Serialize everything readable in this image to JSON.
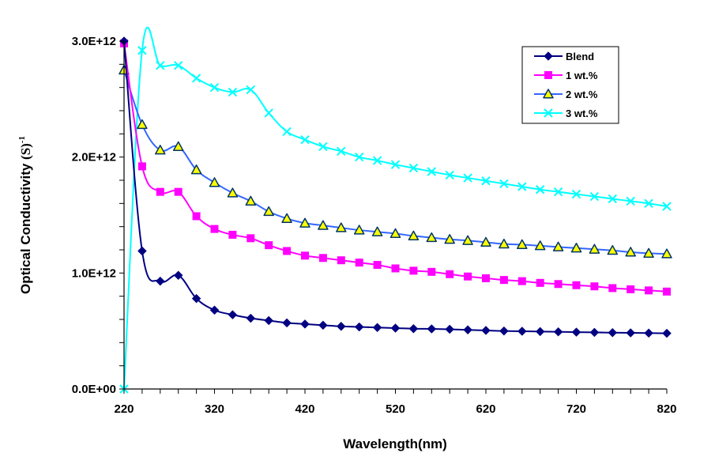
{
  "chart_data": {
    "type": "line",
    "title": "",
    "xlabel": "Wavelength(nm)",
    "ylabel": {
      "main": "Optical Conductivity ",
      "unit": "(S)",
      "exponent": "-1"
    },
    "xlim": [
      220,
      820
    ],
    "ylim": [
      0,
      3000000000000.0
    ],
    "x_ticks": [
      220,
      320,
      420,
      520,
      620,
      720,
      820
    ],
    "x_tick_labels": [
      "220",
      "320",
      "420",
      "520",
      "620",
      "720",
      "820"
    ],
    "x_minor_step": 20,
    "y_ticks": [
      0,
      1000000000000.0,
      2000000000000.0,
      3000000000000.0
    ],
    "y_tick_labels": [
      "0.0E+00",
      "1.0E+12",
      "2.0E+12",
      "3.0E+12"
    ],
    "y_minor_step": 200000000000.0,
    "grid": false,
    "legend_position": "top-right",
    "x": [
      220,
      240,
      260,
      280,
      300,
      320,
      340,
      360,
      380,
      400,
      420,
      440,
      460,
      480,
      500,
      520,
      540,
      560,
      580,
      600,
      620,
      640,
      660,
      680,
      700,
      720,
      740,
      760,
      780,
      800,
      820
    ],
    "series": [
      {
        "name": "Blend",
        "color": "#000080",
        "marker": "diamond",
        "values": [
          3000000000000.0,
          1190000000000.0,
          930000000000.0,
          980000000000.0,
          780000000000.0,
          680000000000.0,
          640000000000.0,
          610000000000.0,
          590000000000.0,
          570000000000.0,
          560000000000.0,
          550000000000.0,
          540000000000.0,
          535000000000.0,
          530000000000.0,
          525000000000.0,
          520000000000.0,
          518000000000.0,
          515000000000.0,
          510000000000.0,
          505000000000.0,
          500000000000.0,
          498000000000.0,
          495000000000.0,
          493000000000.0,
          490000000000.0,
          488000000000.0,
          486000000000.0,
          484000000000.0,
          482000000000.0,
          480000000000.0
        ]
      },
      {
        "name": "1 wt.%",
        "color": "#FF00FF",
        "marker": "square",
        "values": [
          2980000000000.0,
          1920000000000.0,
          1700000000000.0,
          1700000000000.0,
          1490000000000.0,
          1380000000000.0,
          1330000000000.0,
          1300000000000.0,
          1240000000000.0,
          1190000000000.0,
          1150000000000.0,
          1130000000000.0,
          1110000000000.0,
          1090000000000.0,
          1070000000000.0,
          1040000000000.0,
          1020000000000.0,
          1010000000000.0,
          990000000000.0,
          970000000000.0,
          955000000000.0,
          940000000000.0,
          930000000000.0,
          915000000000.0,
          905000000000.0,
          895000000000.0,
          885000000000.0,
          870000000000.0,
          860000000000.0,
          850000000000.0,
          840000000000.0
        ]
      },
      {
        "name": "2 wt.%",
        "color": "#3366FF",
        "marker": "triangle",
        "marker_fill": "#FFFF00",
        "marker_edge": "#003366",
        "values": [
          2750000000000.0,
          2280000000000.0,
          2060000000000.0,
          2090000000000.0,
          1890000000000.0,
          1780000000000.0,
          1690000000000.0,
          1620000000000.0,
          1530000000000.0,
          1470000000000.0,
          1430000000000.0,
          1410000000000.0,
          1390000000000.0,
          1370000000000.0,
          1355000000000.0,
          1340000000000.0,
          1320000000000.0,
          1305000000000.0,
          1290000000000.0,
          1280000000000.0,
          1265000000000.0,
          1250000000000.0,
          1245000000000.0,
          1235000000000.0,
          1225000000000.0,
          1215000000000.0,
          1205000000000.0,
          1195000000000.0,
          1180000000000.0,
          1170000000000.0,
          1165000000000.0
        ]
      },
      {
        "name": "3 wt.%",
        "color": "#00FFFF",
        "marker": "x",
        "values": [
          0,
          2920000000000.0,
          2790000000000.0,
          2790000000000.0,
          2680000000000.0,
          2600000000000.0,
          2560000000000.0,
          2580000000000.0,
          2380000000000.0,
          2220000000000.0,
          2150000000000.0,
          2090000000000.0,
          2050000000000.0,
          2000000000000.0,
          1970000000000.0,
          1935000000000.0,
          1905000000000.0,
          1875000000000.0,
          1845000000000.0,
          1820000000000.0,
          1795000000000.0,
          1770000000000.0,
          1745000000000.0,
          1720000000000.0,
          1700000000000.0,
          1680000000000.0,
          1660000000000.0,
          1640000000000.0,
          1620000000000.0,
          1600000000000.0,
          1575000000000.0
        ]
      }
    ]
  }
}
